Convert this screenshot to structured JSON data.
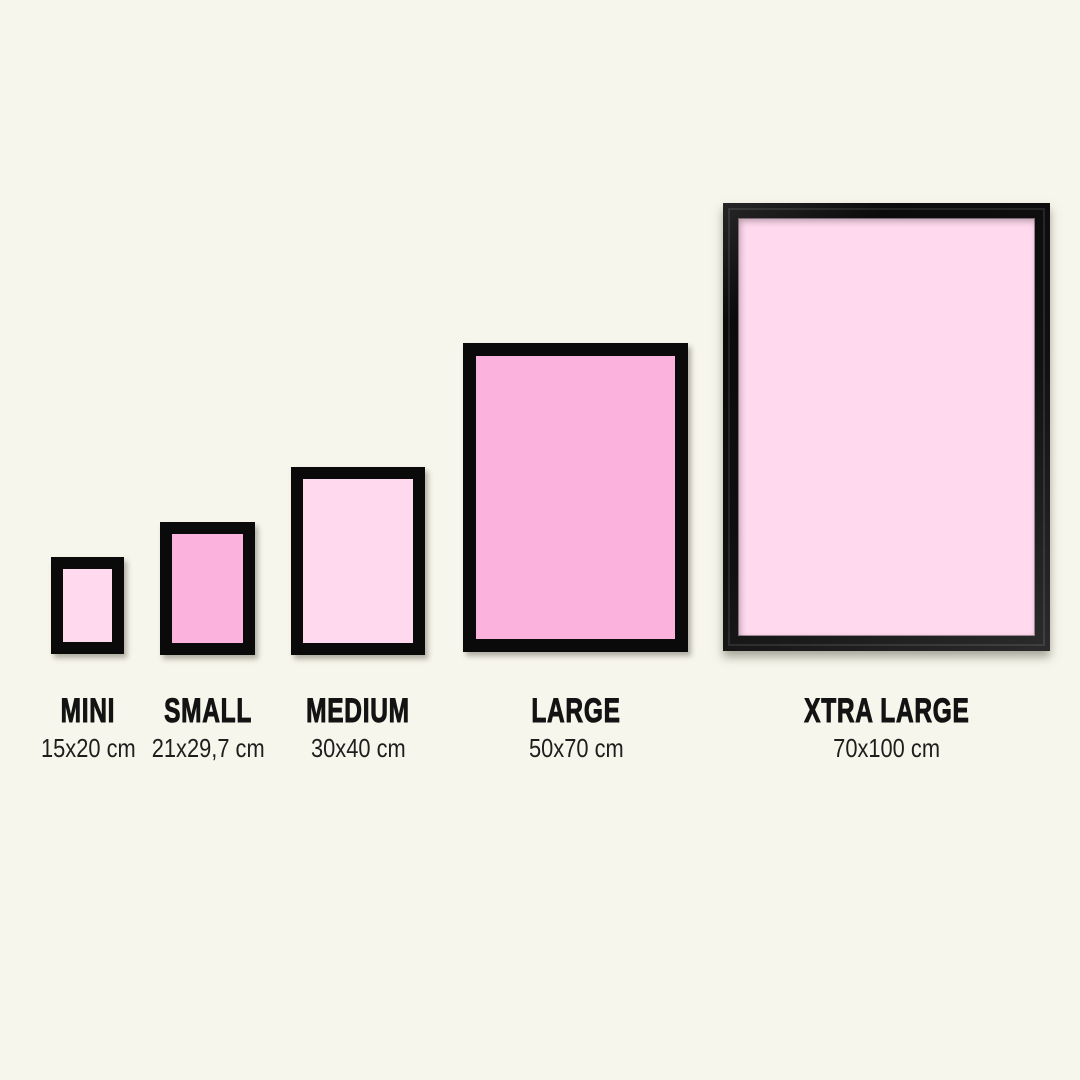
{
  "page": {
    "background_color": "#F7F6EC"
  },
  "colors": {
    "frame_black": "#0A0A0A",
    "pink_light": "#FFD9EE",
    "pink_medium": "#FBB2DC",
    "label_text": "#131313",
    "dimensions_text": "#1E1E1C"
  },
  "sizes": [
    {
      "id": "mini",
      "label": "MINI",
      "dimensions": "15x20 cm",
      "poster_color": "#FFD9EE"
    },
    {
      "id": "small",
      "label": "SMALL",
      "dimensions": "21x29,7 cm",
      "poster_color": "#FBB2DC"
    },
    {
      "id": "medium",
      "label": "MEDIUM",
      "dimensions": "30x40 cm",
      "poster_color": "#FFD9EE"
    },
    {
      "id": "large",
      "label": "LARGE",
      "dimensions": "50x70 cm",
      "poster_color": "#FBB2DC"
    },
    {
      "id": "xtra_large",
      "label": "XTRA LARGE",
      "dimensions": "70x100 cm",
      "poster_color": "#FFD9EE"
    }
  ]
}
